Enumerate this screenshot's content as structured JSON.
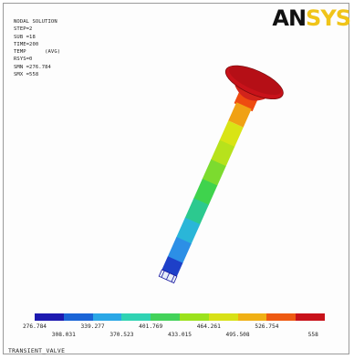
{
  "window": {
    "caption": "TRANSIENT_VALVE"
  },
  "logo": {
    "text_dark": "AN",
    "text_accent": "SYS"
  },
  "info": {
    "lines": [
      "NODAL SOLUTION",
      "",
      "STEP=2",
      "SUB =18",
      "TIME=200",
      "TEMP      (AVG)",
      "RSYS=0",
      "SMN =276.784",
      "SMX =558"
    ]
  },
  "legend": {
    "colors": [
      "#1d1ab0",
      "#1a64d6",
      "#2aa7e6",
      "#30d3b3",
      "#43d25a",
      "#9be21c",
      "#d8e116",
      "#f0b014",
      "#ee5a12",
      "#c8121a"
    ],
    "top_ticks": [
      "276.784",
      "339.277",
      "401.769",
      "464.261",
      "526.754"
    ],
    "bottom_ticks": [
      "308.031",
      "370.523",
      "433.015",
      "495.508",
      "558"
    ]
  },
  "valve": {
    "stem_colors": [
      "#d9e415",
      "#b7e21c",
      "#7cdb2f",
      "#3fd34d",
      "#2cc98f",
      "#2ab6d8",
      "#2c8fe6"
    ]
  },
  "colors": {
    "head": "#c8121a",
    "neck": "#ee4b10",
    "band": "#f0a114"
  }
}
